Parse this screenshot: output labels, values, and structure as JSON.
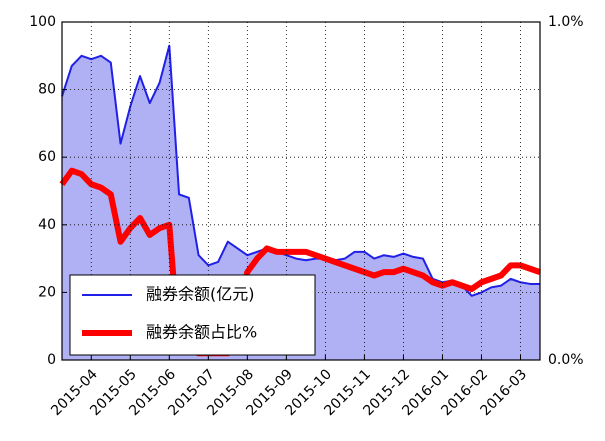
{
  "chart_data": {
    "type": "line",
    "categories": [
      null,
      null,
      null,
      "2015-04",
      null,
      null,
      null,
      "2015-05",
      null,
      null,
      null,
      "2015-06",
      null,
      null,
      null,
      "2015-07",
      null,
      null,
      null,
      "2015-08",
      null,
      null,
      null,
      "2015-09",
      null,
      null,
      null,
      "2015-10",
      null,
      null,
      null,
      "2015-11",
      null,
      null,
      null,
      "2015-12",
      null,
      null,
      null,
      "2016-01",
      null,
      null,
      null,
      "2016-02",
      null,
      null,
      null,
      "2016-03",
      null,
      null
    ],
    "series": [
      {
        "name": "融券余额(亿元)",
        "color": "#2020e8",
        "fill": "#b0b0f4",
        "values": [
          78,
          87,
          90,
          89,
          90,
          88,
          64,
          75,
          84,
          76,
          82,
          93,
          49,
          48,
          31,
          28,
          29,
          35,
          33,
          31,
          32,
          33,
          32,
          31,
          30,
          29.5,
          30,
          30,
          29.5,
          30,
          32,
          32,
          30,
          31,
          30.5,
          31.5,
          30.5,
          30,
          24,
          23,
          23.5,
          22,
          19,
          20,
          21.5,
          22,
          24,
          23,
          22.5,
          22.5
        ]
      },
      {
        "name": "融券余额占比%",
        "color": "#ff0000",
        "axis": "y2",
        "values": [
          0.52,
          0.56,
          0.55,
          0.52,
          0.51,
          0.49,
          0.35,
          0.39,
          0.42,
          0.37,
          0.39,
          0.4,
          0.03,
          0.03,
          0.02,
          0.02,
          0.02,
          0.02,
          0.15,
          0.26,
          0.3,
          0.33,
          0.32,
          0.32,
          0.32,
          0.32,
          0.31,
          0.3,
          0.29,
          0.28,
          0.27,
          0.26,
          0.25,
          0.26,
          0.26,
          0.27,
          0.26,
          0.25,
          0.23,
          0.22,
          0.23,
          0.22,
          0.21,
          0.23,
          0.24,
          0.25,
          0.28,
          0.28,
          0.27,
          0.26
        ]
      }
    ],
    "ylim": [
      0,
      100
    ],
    "yticks": [
      0,
      20,
      40,
      60,
      80,
      100
    ],
    "y2lim": [
      0,
      1
    ],
    "y2ticks": [
      {
        "value": 0,
        "label": "0.0%"
      },
      {
        "value": 1,
        "label": "1.0%"
      }
    ],
    "grid": true,
    "legend": "lower left"
  }
}
